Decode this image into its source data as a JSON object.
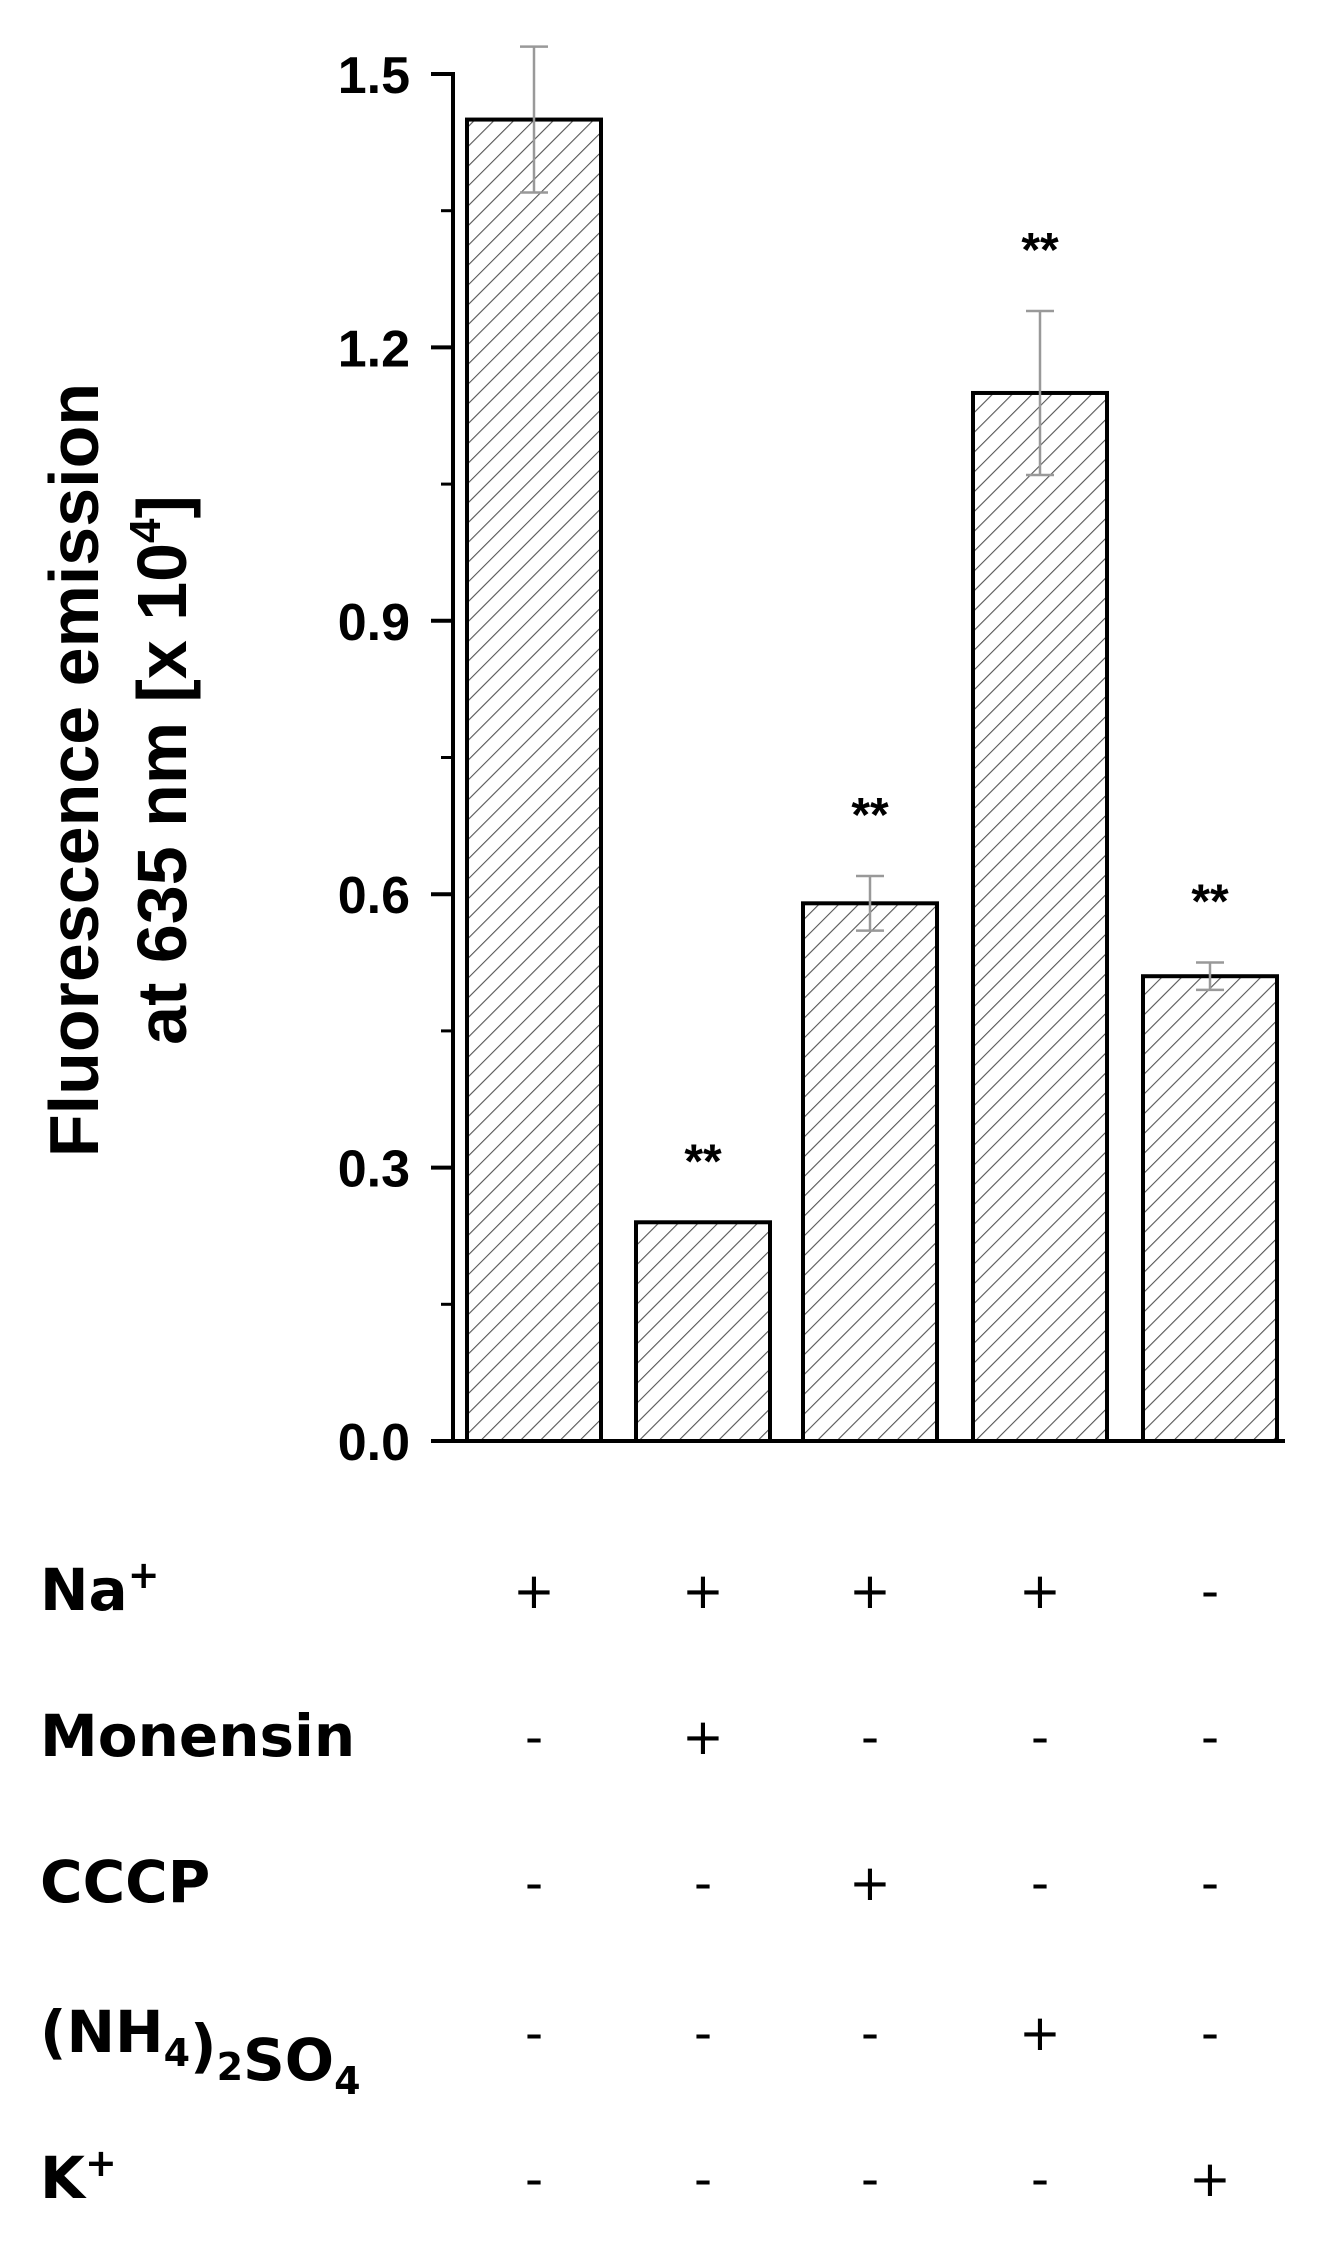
{
  "chart_data": {
    "type": "bar",
    "ylabel_line1": "Fluorescence emission",
    "ylabel_line2_prefix": "at 635 nm [x 10",
    "ylabel_line2_sup": "4",
    "ylabel_line2_suffix": "]",
    "ylim": [
      0,
      1.5
    ],
    "yticks": [
      "0.0",
      "0.3",
      "0.6",
      "0.9",
      "1.2",
      "1.5"
    ],
    "ytick_values": [
      0,
      0.3,
      0.6,
      0.9,
      1.2,
      1.5
    ],
    "values": [
      1.45,
      0.24,
      0.59,
      1.15,
      0.51
    ],
    "errors": [
      0.08,
      0,
      0.03,
      0.09,
      0.015
    ],
    "significance": [
      "",
      "**",
      "**",
      "**",
      "**"
    ],
    "bar_fill": "hatched",
    "bar_stroke": "#000000",
    "hatch_color": "#555555",
    "error_color": "#999999",
    "conditions": [
      {
        "label_parts": [
          [
            "Na",
            ""
          ],
          [
            "+",
            "sup"
          ]
        ],
        "marks": [
          "+",
          "+",
          "+",
          "+",
          "-"
        ]
      },
      {
        "label_parts": [
          [
            "Monensin",
            ""
          ]
        ],
        "marks": [
          "-",
          "+",
          "-",
          "-",
          "-"
        ]
      },
      {
        "label_parts": [
          [
            "CCCP",
            ""
          ]
        ],
        "marks": [
          "-",
          "-",
          "+",
          "-",
          "-"
        ]
      },
      {
        "label_parts": [
          [
            "(NH",
            ""
          ],
          [
            "4",
            "sub"
          ],
          [
            ")",
            ""
          ],
          [
            "2",
            "sub"
          ],
          [
            "SO",
            ""
          ],
          [
            "4",
            "sub"
          ]
        ],
        "marks": [
          "-",
          "-",
          "-",
          "+",
          "-"
        ]
      },
      {
        "label_parts": [
          [
            "K",
            ""
          ],
          [
            "+",
            "sup"
          ]
        ],
        "marks": [
          "-",
          "-",
          "-",
          "-",
          "+"
        ]
      }
    ]
  }
}
